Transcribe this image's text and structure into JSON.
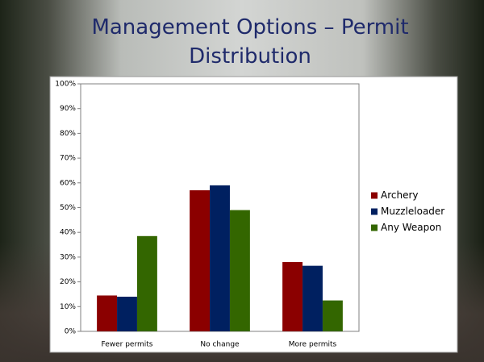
{
  "chart_data": {
    "type": "bar",
    "title": "Management Options – Permit Distribution",
    "categories": [
      "Fewer permits",
      "No change",
      "More permits"
    ],
    "series": [
      {
        "name": "Archery",
        "color": "#8b0000",
        "values": [
          14.5,
          57,
          28
        ]
      },
      {
        "name": "Muzzleloader",
        "color": "#002060",
        "values": [
          14,
          59,
          26.5
        ]
      },
      {
        "name": "Any Weapon",
        "color": "#336600",
        "values": [
          38.5,
          49,
          12.5
        ]
      }
    ],
    "ylim": [
      0,
      100
    ],
    "yticks": [
      {
        "value": 0,
        "label": "0%"
      },
      {
        "value": 10,
        "label": "10%"
      },
      {
        "value": 20,
        "label": "20%"
      },
      {
        "value": 30,
        "label": "30%"
      },
      {
        "value": 40,
        "label": "40%"
      },
      {
        "value": 50,
        "label": "50%"
      },
      {
        "value": 60,
        "label": "60%"
      },
      {
        "value": 70,
        "label": "70%"
      },
      {
        "value": 80,
        "label": "80%"
      },
      {
        "value": 90,
        "label": "90%"
      },
      {
        "value": 100,
        "label": "100%"
      }
    ],
    "grid": false,
    "legend": "right"
  }
}
